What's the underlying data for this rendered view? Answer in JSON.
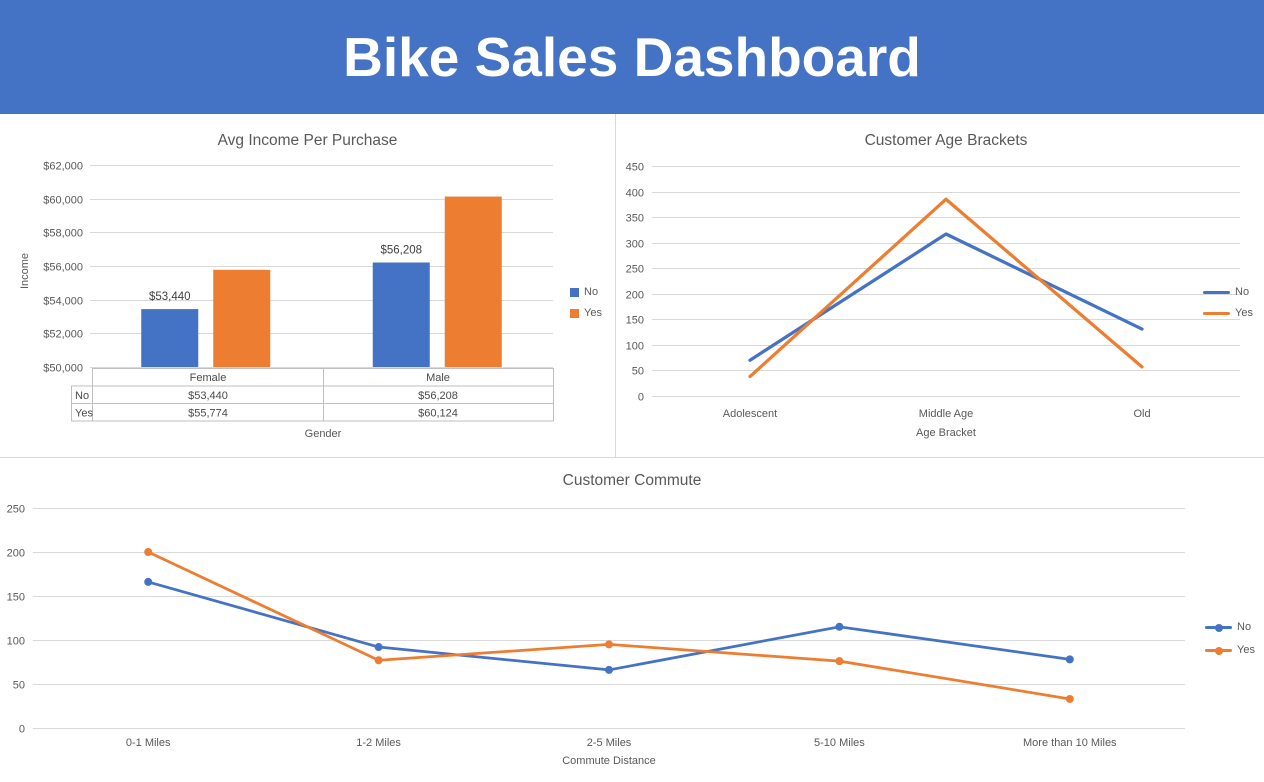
{
  "header": {
    "title": "Bike Sales Dashboard"
  },
  "colors": {
    "banner": "#4472C4",
    "series_no": "#4472C4",
    "series_yes": "#ED7D31",
    "gridline": "#D9D9D9",
    "table_border": "#BFBFBF",
    "text": "#595959"
  },
  "chart_data": [
    {
      "id": "income",
      "type": "bar",
      "title": "Avg Income Per Purchase",
      "xlabel": "Gender",
      "ylabel": "Income",
      "categories": [
        "Female",
        "Male"
      ],
      "series": [
        {
          "name": "No",
          "color": "#4472C4",
          "values": [
            53440,
            56208
          ],
          "data_labels": [
            "$53,440",
            "$56,208"
          ]
        },
        {
          "name": "Yes",
          "color": "#ED7D31",
          "values": [
            55774,
            60124
          ]
        }
      ],
      "ylim": [
        50000,
        62000
      ],
      "yticks": {
        "values": [
          50000,
          52000,
          54000,
          56000,
          58000,
          60000,
          62000
        ],
        "labels": [
          "$50,000",
          "$52,000",
          "$54,000",
          "$56,000",
          "$58,000",
          "$60,000",
          "$62,000"
        ]
      },
      "legend": {
        "position": "right",
        "marker": "square",
        "items": [
          "No",
          "Yes"
        ]
      },
      "grid": true,
      "table": {
        "column_headers": [
          "Female",
          "Male"
        ],
        "rows": [
          {
            "label": "No",
            "values": [
              "$53,440",
              "$56,208"
            ]
          },
          {
            "label": "Yes",
            "values": [
              "$55,774",
              "$60,124"
            ]
          }
        ]
      }
    },
    {
      "id": "age",
      "type": "line",
      "title": "Customer Age Brackets",
      "xlabel": "Age Bracket",
      "ylabel": "",
      "categories": [
        "Adolescent",
        "Middle Age",
        "Old"
      ],
      "series": [
        {
          "name": "No",
          "color": "#4472C4",
          "values": [
            70,
            317,
            131
          ]
        },
        {
          "name": "Yes",
          "color": "#ED7D31",
          "values": [
            38,
            385,
            57
          ]
        }
      ],
      "ylim": [
        0,
        450
      ],
      "yticks": {
        "values": [
          0,
          50,
          100,
          150,
          200,
          250,
          300,
          350,
          400,
          450
        ],
        "labels": [
          "0",
          "50",
          "100",
          "150",
          "200",
          "250",
          "300",
          "350",
          "400",
          "450"
        ]
      },
      "legend": {
        "position": "right",
        "marker": "line",
        "items": [
          "No",
          "Yes"
        ]
      },
      "grid": true
    },
    {
      "id": "commute",
      "type": "line",
      "title": "Customer Commute",
      "xlabel": "Commute Distance",
      "ylabel": "",
      "categories": [
        "0-1 Miles",
        "1-2 Miles",
        "2-5 Miles",
        "5-10 Miles",
        "More than 10 Miles"
      ],
      "series": [
        {
          "name": "No",
          "color": "#4472C4",
          "values": [
            166,
            92,
            66,
            115,
            78
          ]
        },
        {
          "name": "Yes",
          "color": "#ED7D31",
          "values": [
            200,
            77,
            95,
            76,
            33
          ]
        }
      ],
      "ylim": [
        0,
        250
      ],
      "yticks": {
        "values": [
          0,
          50,
          100,
          150,
          200,
          250
        ],
        "labels": [
          "0",
          "50",
          "100",
          "150",
          "200",
          "250"
        ]
      },
      "legend": {
        "position": "right",
        "marker": "line-circle",
        "items": [
          "No",
          "Yes"
        ]
      },
      "grid": true
    }
  ]
}
